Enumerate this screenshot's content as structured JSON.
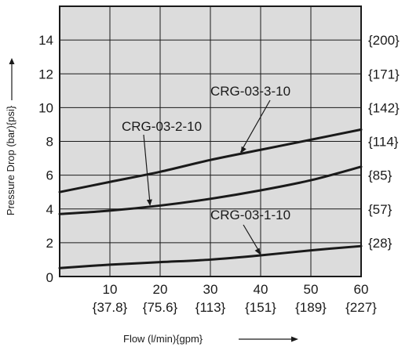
{
  "chart_data": {
    "type": "line",
    "xlabel": "Flow (l/min){gpm}",
    "ylabel": "Pressure Drop (bar){psi}",
    "xlim": [
      0,
      60
    ],
    "ylim": [
      0,
      16
    ],
    "grid": true,
    "x_ticks": [
      {
        "value": 10,
        "label": "10",
        "sub": "{37.8}"
      },
      {
        "value": 20,
        "label": "20",
        "sub": "{75.6}"
      },
      {
        "value": 30,
        "label": "30",
        "sub": "{113}"
      },
      {
        "value": 40,
        "label": "40",
        "sub": "{151}"
      },
      {
        "value": 50,
        "label": "50",
        "sub": "{189}"
      },
      {
        "value": 60,
        "label": "60",
        "sub": "{227}"
      }
    ],
    "x_zero_label": "0",
    "y_ticks": [
      {
        "value": 2,
        "label": "2",
        "right": "{28}"
      },
      {
        "value": 4,
        "label": "4",
        "right": "{57}"
      },
      {
        "value": 6,
        "label": "6",
        "right": "{85}"
      },
      {
        "value": 8,
        "label": "8",
        "right": "{114}"
      },
      {
        "value": 10,
        "label": "10",
        "right": "{142}"
      },
      {
        "value": 12,
        "label": "12",
        "right": "{171}"
      },
      {
        "value": 14,
        "label": "14",
        "right": "{200}"
      }
    ],
    "series": [
      {
        "name": "CRG-03-1-10",
        "x": [
          0,
          10,
          20,
          30,
          40,
          50,
          60
        ],
        "y": [
          0.5,
          0.7,
          0.85,
          1.0,
          1.25,
          1.55,
          1.8
        ]
      },
      {
        "name": "CRG-03-2-10",
        "x": [
          0,
          10,
          20,
          30,
          40,
          50,
          60
        ],
        "y": [
          3.7,
          3.9,
          4.2,
          4.6,
          5.1,
          5.7,
          6.5
        ]
      },
      {
        "name": "CRG-03-3-10",
        "x": [
          0,
          10,
          20,
          30,
          40,
          50,
          60
        ],
        "y": [
          5.0,
          5.6,
          6.2,
          6.9,
          7.5,
          8.1,
          8.7
        ]
      }
    ]
  }
}
